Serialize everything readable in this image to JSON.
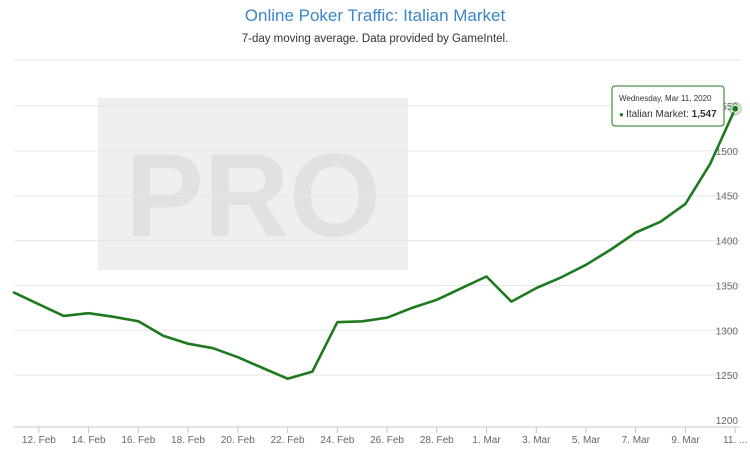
{
  "chart_data": {
    "type": "line",
    "title": "Online Poker Traffic: Italian Market",
    "subtitle": "7-day moving average. Data provided by GameIntel.",
    "xlabel": "",
    "ylabel": "",
    "watermark": "PRO",
    "x_tick_labels": [
      "12. Feb",
      "14. Feb",
      "16. Feb",
      "18. Feb",
      "20. Feb",
      "22. Feb",
      "24. Feb",
      "26. Feb",
      "28. Feb",
      "1. Mar",
      "3. Mar",
      "5. Mar",
      "7. Mar",
      "9. Mar",
      "11. ..."
    ],
    "y_ticks": [
      1200,
      1250,
      1300,
      1350,
      1400,
      1450,
      1500,
      1550
    ],
    "y_tick_labels": [
      "1200",
      "1250",
      "1300",
      "1350",
      "1400",
      "1450",
      "1500",
      "1550"
    ],
    "ylim": [
      1200,
      1550
    ],
    "grid": true,
    "legend": "none",
    "colors": {
      "series": "#1e7a1e",
      "title": "#3a86c8"
    },
    "series": [
      {
        "name": "Italian Market",
        "x": [
          "Feb 11",
          "Feb 12",
          "Feb 13",
          "Feb 14",
          "Feb 15",
          "Feb 16",
          "Feb 17",
          "Feb 18",
          "Feb 19",
          "Feb 20",
          "Feb 21",
          "Feb 22",
          "Feb 23",
          "Feb 24",
          "Feb 25",
          "Feb 26",
          "Feb 27",
          "Feb 28",
          "Feb 29",
          "Mar 1",
          "Mar 2",
          "Mar 3",
          "Mar 4",
          "Mar 5",
          "Mar 6",
          "Mar 7",
          "Mar 8",
          "Mar 9",
          "Mar 10",
          "Mar 11"
        ],
        "values": [
          1342,
          1329,
          1316,
          1319,
          1315,
          1310,
          1294,
          1285,
          1280,
          1270,
          1258,
          1246,
          1254,
          1309,
          1310,
          1314,
          1325,
          1334,
          1347,
          1360,
          1332,
          1347,
          1359,
          1373,
          1390,
          1409,
          1421,
          1441,
          1486,
          1547
        ]
      }
    ],
    "tooltip": {
      "date": "Wednesday, Mar 11, 2020",
      "series_label": "Italian Market:",
      "value": "1,547",
      "bullet": "●"
    }
  }
}
